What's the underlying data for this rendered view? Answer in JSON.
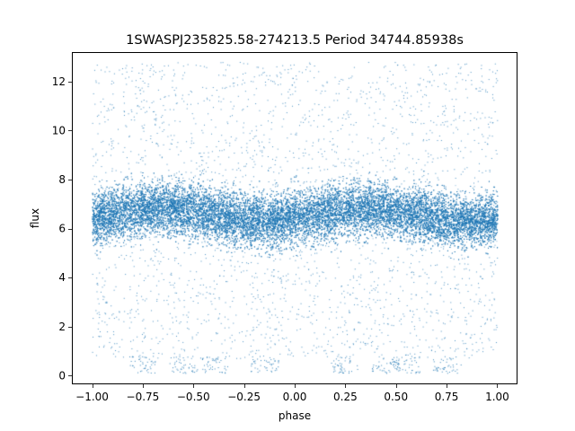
{
  "chart_data": {
    "type": "scatter",
    "title": "1SWASPJ235825.58-274213.5 Period 34744.85938s",
    "xlabel": "phase",
    "ylabel": "flux",
    "xlim": [
      -1.1,
      1.1
    ],
    "ylim": [
      -0.35,
      13.2
    ],
    "xticks": [
      -1.0,
      -0.75,
      -0.5,
      -0.25,
      0.0,
      0.25,
      0.5,
      0.75,
      1.0
    ],
    "xtick_labels": [
      "−1.00",
      "−0.75",
      "−0.50",
      "−0.25",
      "0.00",
      "0.25",
      "0.50",
      "0.75",
      "1.00"
    ],
    "yticks": [
      0,
      2,
      4,
      6,
      8,
      10,
      12
    ],
    "ytick_labels": [
      "0",
      "2",
      "4",
      "6",
      "8",
      "10",
      "12"
    ],
    "grid": false,
    "legend": "none",
    "marker_color": "#1f77b4",
    "series": [
      {
        "phase_range": [
          -1.0,
          1.0
        ],
        "core_flux_range": [
          5.0,
          8.5
        ],
        "median_flux": 6.6,
        "outlier_flux_range": [
          0.2,
          12.8
        ],
        "low_flux_clusters_phase": [
          -0.75,
          -0.55,
          -0.4,
          -0.15,
          0.25,
          0.45,
          0.55,
          0.75
        ],
        "low_flux_clusters_flux": 0.25,
        "density_note": "dense band of tens of thousands of points; two dips in density near phase -0.4 and 0.35"
      }
    ]
  }
}
